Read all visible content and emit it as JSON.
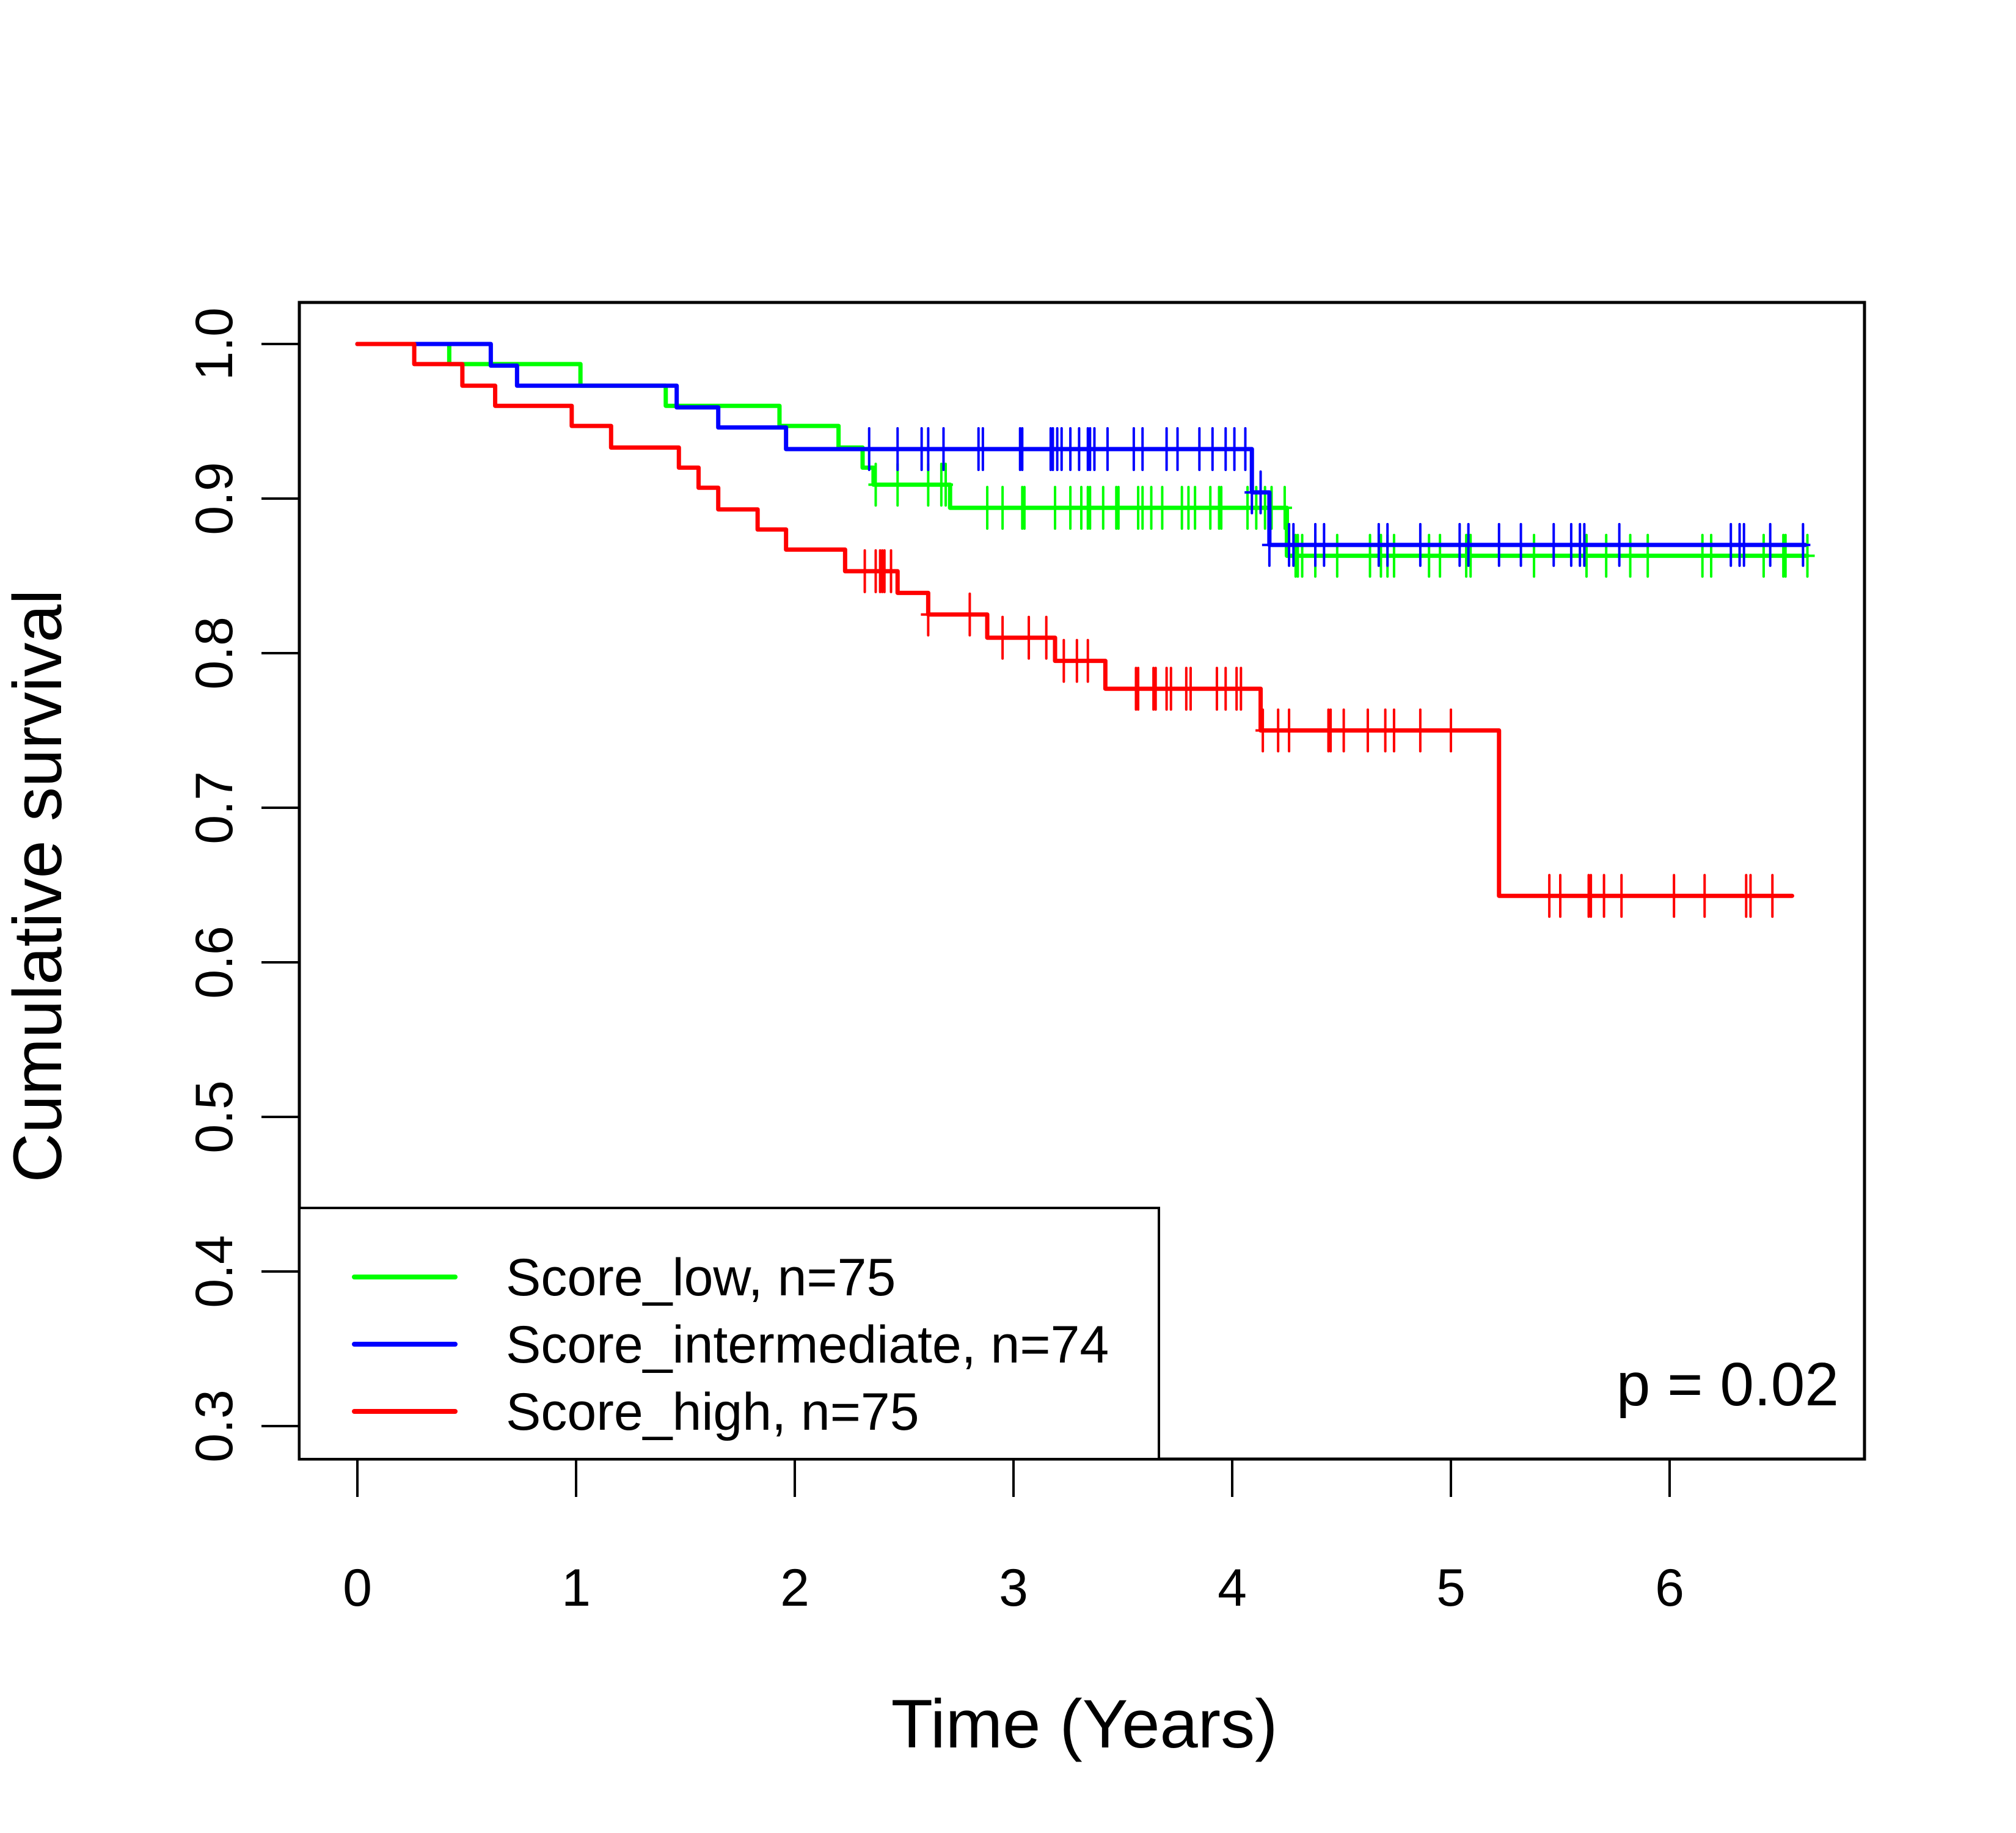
{
  "chart_data": {
    "type": "line",
    "subtype": "kaplan-meier step",
    "title": "",
    "xlabel": "Time (Years)",
    "ylabel": "Cumulative survival",
    "xlim": [
      -0.27,
      6.87
    ],
    "ylim": [
      0.27,
      1.03
    ],
    "xticks": [
      0,
      1,
      2,
      3,
      4,
      5,
      6
    ],
    "xtick_labels": [
      "0",
      "1",
      "2",
      "3",
      "4",
      "5",
      "6"
    ],
    "yticks": [
      0.3,
      0.4,
      0.5,
      0.6,
      0.7,
      0.8,
      0.9,
      1.0
    ],
    "ytick_labels": [
      "0.3",
      "0.4",
      "0.5",
      "0.6",
      "0.7",
      "0.8",
      "0.9",
      "1.0"
    ],
    "grid": false,
    "legend_position": "bottom-left",
    "annotation": "p = 0.02",
    "series": [
      {
        "name": "Score_low, n=75",
        "color": "#00ff00",
        "steps": [
          [
            0,
            1.0
          ],
          [
            0.42,
            0.987
          ],
          [
            1.02,
            0.973
          ],
          [
            1.41,
            0.96
          ],
          [
            1.93,
            0.947
          ],
          [
            2.2,
            0.933
          ],
          [
            2.31,
            0.92
          ],
          [
            2.36,
            0.909
          ],
          [
            2.71,
            0.894
          ],
          [
            4.25,
            0.863
          ]
        ],
        "end_time": 6.63,
        "censored": [
          2.37,
          2.47,
          2.61,
          2.67,
          2.69,
          2.88,
          2.95,
          3.04,
          3.05,
          3.19,
          3.26,
          3.31,
          3.34,
          3.35,
          3.41,
          3.47,
          3.48,
          3.57,
          3.59,
          3.63,
          3.68,
          3.77,
          3.8,
          3.83,
          3.9,
          3.94,
          3.95,
          4.07,
          4.11,
          4.15,
          4.18,
          4.24,
          4.29,
          4.3,
          4.32,
          4.38,
          4.48,
          4.63,
          4.68,
          4.71,
          4.74,
          4.9,
          4.95,
          5.07,
          5.09,
          5.38,
          5.62,
          5.71,
          5.82,
          5.9,
          6.15,
          6.19,
          6.43,
          6.52,
          6.53,
          6.63
        ]
      },
      {
        "name": "Score_intermediate, n=74",
        "color": "#0000ff",
        "steps": [
          [
            0,
            1.0
          ],
          [
            0.61,
            0.986
          ],
          [
            0.73,
            0.973
          ],
          [
            1.46,
            0.959
          ],
          [
            1.65,
            0.946
          ],
          [
            1.96,
            0.932
          ],
          [
            4.09,
            0.904
          ],
          [
            4.17,
            0.87
          ]
        ],
        "end_time": 6.62,
        "censored": [
          2.34,
          2.47,
          2.58,
          2.61,
          2.68,
          2.84,
          2.86,
          3.03,
          3.04,
          3.17,
          3.18,
          3.2,
          3.22,
          3.26,
          3.3,
          3.34,
          3.35,
          3.37,
          3.43,
          3.55,
          3.59,
          3.7,
          3.75,
          3.85,
          3.91,
          3.97,
          4.01,
          4.06,
          4.09,
          4.13,
          4.17,
          4.26,
          4.28,
          4.38,
          4.42,
          4.67,
          4.71,
          4.86,
          5.04,
          5.08,
          5.22,
          5.32,
          5.47,
          5.55,
          5.59,
          5.61,
          5.77,
          6.28,
          6.32,
          6.34,
          6.46,
          6.61
        ]
      },
      {
        "name": "Score_high, n=75",
        "color": "#ff0000",
        "steps": [
          [
            0,
            1.0
          ],
          [
            0.26,
            0.987
          ],
          [
            0.48,
            0.973
          ],
          [
            0.63,
            0.96
          ],
          [
            0.98,
            0.947
          ],
          [
            1.16,
            0.933
          ],
          [
            1.47,
            0.92
          ],
          [
            1.56,
            0.907
          ],
          [
            1.65,
            0.893
          ],
          [
            1.83,
            0.88
          ],
          [
            1.96,
            0.867
          ],
          [
            2.23,
            0.853
          ],
          [
            2.47,
            0.839
          ],
          [
            2.61,
            0.825
          ],
          [
            2.88,
            0.81
          ],
          [
            3.19,
            0.795
          ],
          [
            3.42,
            0.777
          ],
          [
            4.13,
            0.75
          ],
          [
            5.22,
            0.643
          ]
        ],
        "end_time": 6.56,
        "censored": [
          2.32,
          2.37,
          2.39,
          2.4,
          2.41,
          2.44,
          2.61,
          2.8,
          2.95,
          3.07,
          3.15,
          3.23,
          3.29,
          3.34,
          3.56,
          3.57,
          3.64,
          3.65,
          3.7,
          3.72,
          3.79,
          3.81,
          3.93,
          3.97,
          4.02,
          4.04,
          4.14,
          4.21,
          4.26,
          4.44,
          4.45,
          4.51,
          4.62,
          4.7,
          4.74,
          4.86,
          5.0,
          5.45,
          5.5,
          5.63,
          5.64,
          5.7,
          5.78,
          6.02,
          6.16,
          6.35,
          6.37,
          6.47
        ]
      }
    ]
  }
}
